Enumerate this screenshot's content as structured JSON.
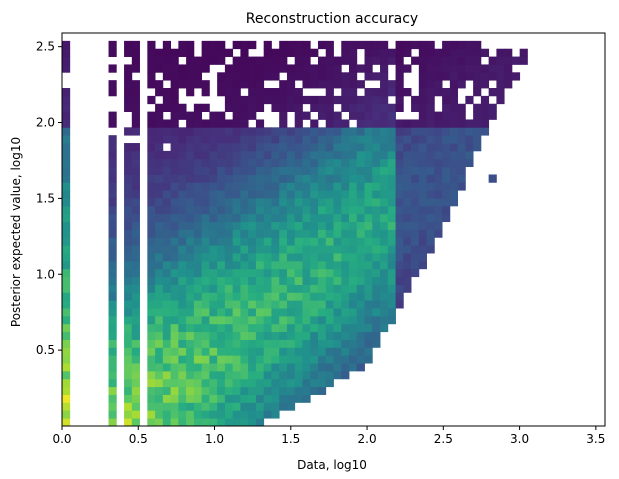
{
  "chart_data": {
    "type": "heatmap",
    "title": "Reconstruction accuracy",
    "xlabel": "Data, log10",
    "ylabel": "Posterior expected value, log10",
    "xlim": [
      0.0,
      3.56
    ],
    "ylim": [
      0.0,
      2.59
    ],
    "x_ticks": [
      {
        "value": 0.0,
        "label": "0.0"
      },
      {
        "value": 0.5,
        "label": "0.5"
      },
      {
        "value": 1.0,
        "label": "1.0"
      },
      {
        "value": 1.5,
        "label": "1.5"
      },
      {
        "value": 2.0,
        "label": "2.0"
      },
      {
        "value": 2.5,
        "label": "2.5"
      },
      {
        "value": 3.0,
        "label": "3.0"
      },
      {
        "value": 3.5,
        "label": "3.5"
      }
    ],
    "y_ticks": [
      {
        "value": 0.5,
        "label": "0.5"
      },
      {
        "value": 1.0,
        "label": "1.0"
      },
      {
        "value": 1.5,
        "label": "1.5"
      },
      {
        "value": 2.0,
        "label": "2.0"
      },
      {
        "value": 2.5,
        "label": "2.5"
      }
    ],
    "colormap": "viridis",
    "bins": {
      "nx": 70,
      "ny": 50
    },
    "density_model": {
      "description": "Approximate log-density of 2D histogram of (data, posterior) pairs",
      "empty_x_gaps": [
        [
          0.07,
          0.29
        ],
        [
          0.36,
          0.43
        ],
        [
          0.5,
          0.57
        ]
      ],
      "peak_x": 0.0,
      "ridge_upper_edge_y_at_x0": 2.55,
      "diagonal_edge": [
        [
          0.6,
          0.0
        ],
        [
          1.3,
          0.0
        ],
        [
          2.0,
          0.4
        ],
        [
          2.5,
          1.3
        ],
        [
          2.8,
          2.0
        ],
        [
          3.1,
          2.5
        ]
      ]
    },
    "colors": {
      "low": "#440154",
      "mid": "#21918c",
      "high": "#fde725"
    }
  }
}
